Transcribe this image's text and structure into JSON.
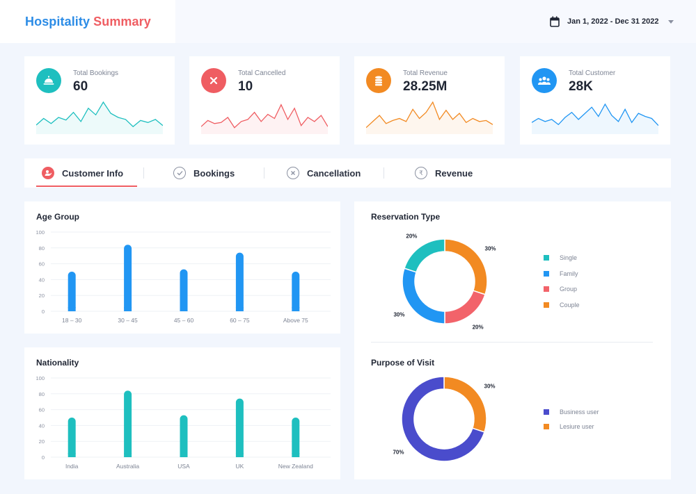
{
  "header": {
    "title_part1": "Hospitality",
    "title_part2": "Summary",
    "date_range": "Jan 1, 2022 - Dec 31 2022"
  },
  "kpis": [
    {
      "label": "Total Bookings",
      "value": "60",
      "color": "#1ebfbf",
      "icon": "bell-icon",
      "spark": [
        15,
        28,
        18,
        30,
        25,
        40,
        22,
        48,
        35,
        60,
        38,
        30,
        26,
        12,
        24,
        20,
        26,
        14
      ]
    },
    {
      "label": "Total Cancelled",
      "value": "10",
      "color": "#ef5d62",
      "icon": "close-icon",
      "spark": [
        12,
        24,
        18,
        20,
        30,
        10,
        22,
        26,
        40,
        22,
        36,
        28,
        55,
        26,
        48,
        14,
        30,
        22,
        34,
        12
      ]
    },
    {
      "label": "Total Revenue",
      "value": "28.25M",
      "color": "#f28a22",
      "icon": "coins-icon",
      "spark": [
        10,
        22,
        34,
        18,
        24,
        28,
        22,
        46,
        28,
        40,
        60,
        26,
        44,
        26,
        38,
        20,
        28,
        22,
        24,
        16
      ]
    },
    {
      "label": "Total Customer",
      "value": "28K",
      "color": "#2196f3",
      "icon": "users-icon",
      "spark": [
        20,
        28,
        22,
        26,
        16,
        30,
        40,
        26,
        38,
        50,
        32,
        56,
        34,
        22,
        46,
        20,
        38,
        32,
        28,
        14
      ]
    }
  ],
  "tabs": [
    {
      "label": "Customer Info",
      "icon": "user-icon",
      "active": true
    },
    {
      "label": "Bookings",
      "icon": "check-icon",
      "active": false
    },
    {
      "label": "Cancellation",
      "icon": "close-icon",
      "active": false
    },
    {
      "label": "Revenue",
      "icon": "rupee-icon",
      "active": false
    }
  ],
  "colors": {
    "blue": "#2196f3",
    "teal": "#1ebfbf",
    "orange": "#f28a22",
    "red": "#f2636a",
    "indigo": "#4a4ccc"
  },
  "chart_data": [
    {
      "type": "bar",
      "title": "Age Group",
      "categories": [
        "18 – 30",
        "30 – 45",
        "45 – 60",
        "60 – 75",
        "Above 75"
      ],
      "values": [
        50,
        84,
        53,
        74,
        50
      ],
      "ylim": [
        0,
        100
      ],
      "yticks": [
        "0",
        "20",
        "40",
        "60",
        "80",
        "100"
      ],
      "color": "#2196f3"
    },
    {
      "type": "bar",
      "title": "Nationality",
      "categories": [
        "India",
        "Australia",
        "USA",
        "UK",
        "New Zealand"
      ],
      "values": [
        50,
        84,
        53,
        74,
        50
      ],
      "ylim": [
        0,
        100
      ],
      "yticks": [
        "0",
        "20",
        "40",
        "60",
        "80",
        "100"
      ],
      "color": "#1ebfbf"
    },
    {
      "type": "pie",
      "title": "Reservation Type",
      "slices": [
        {
          "name": "Couple",
          "value": 30,
          "label": "30%",
          "color": "#f28a22"
        },
        {
          "name": "Group",
          "value": 20,
          "label": "20%",
          "color": "#f2636a"
        },
        {
          "name": "Family",
          "value": 30,
          "label": "30%",
          "color": "#2196f3"
        },
        {
          "name": "Single",
          "value": 20,
          "label": "20%",
          "color": "#1ebfbf"
        }
      ],
      "legend": [
        "Single",
        "Family",
        "Group",
        "Couple"
      ]
    },
    {
      "type": "pie",
      "title": "Purpose of Visit",
      "slices": [
        {
          "name": "Lesiure user",
          "value": 30,
          "label": "30%",
          "color": "#f28a22"
        },
        {
          "name": "Business user",
          "value": 70,
          "label": "70%",
          "color": "#4a4ccc"
        }
      ],
      "legend": [
        "Business user",
        "Lesiure user"
      ]
    }
  ]
}
